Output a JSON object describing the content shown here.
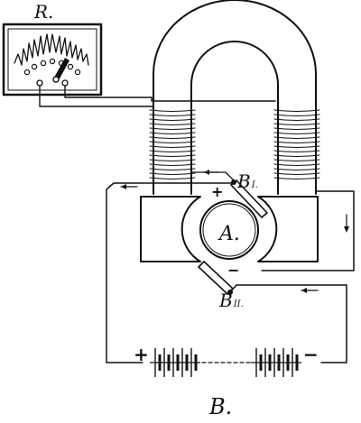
{
  "labels": {
    "rheostat": "R.",
    "armature": "A.",
    "brush_top": "B",
    "brush_top_sub": "I.",
    "brush_bottom": "B",
    "brush_bottom_sub": "II.",
    "plus_brush": "+",
    "minus_brush": "−",
    "battery_plus": "+",
    "battery_minus": "−",
    "figure_caption": "B."
  }
}
